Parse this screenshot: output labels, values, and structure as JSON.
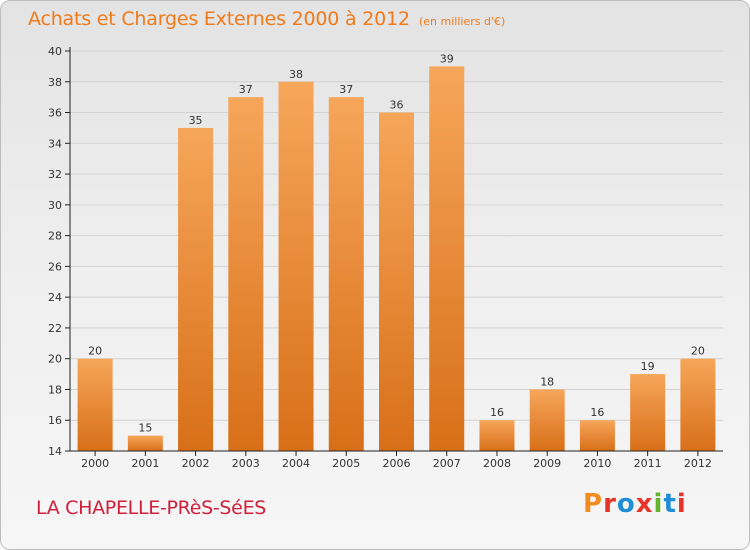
{
  "header": {
    "title": "Achats et Charges Externes 2000 à 2012",
    "subtitle": "(en milliers d'€)"
  },
  "footer": {
    "place": "LA CHAPELLE-PRèS-SéES",
    "brand": "Proxiti",
    "brand_colors": [
      "#f28c1e",
      "#e8332a",
      "#1f8ed6",
      "#e8332a",
      "#64b32e",
      "#1f8ed6",
      "#e8332a"
    ]
  },
  "colors": {
    "accent": "#f07a1a",
    "place": "#d11f3b",
    "bar_top": "#f6a65a",
    "bar_bottom": "#d86f18",
    "axis": "#222222",
    "grid": "#d2d2d2"
  },
  "chart_data": {
    "type": "bar",
    "title": "Achats et Charges Externes 2000 à 2012",
    "subtitle": "(en milliers d'€)",
    "xlabel": "",
    "ylabel": "",
    "categories": [
      "2000",
      "2001",
      "2002",
      "2003",
      "2004",
      "2005",
      "2006",
      "2007",
      "2008",
      "2009",
      "2010",
      "2011",
      "2012"
    ],
    "values": [
      20,
      15,
      35,
      37,
      38,
      37,
      36,
      39,
      16,
      18,
      16,
      19,
      20
    ],
    "data_labels": [
      "20",
      "15",
      "35",
      "37",
      "38",
      "37",
      "36",
      "39",
      "16",
      "18",
      "16",
      "19",
      "20"
    ],
    "ylim": [
      14,
      40
    ],
    "yticks": [
      14,
      16,
      18,
      20,
      22,
      24,
      26,
      28,
      30,
      32,
      34,
      36,
      38,
      40
    ],
    "ytick_labels": [
      "14",
      "16",
      "18",
      "20",
      "22",
      "24",
      "26",
      "28",
      "30",
      "32",
      "34",
      "36",
      "38",
      "40"
    ],
    "grid": true,
    "legend": "none"
  }
}
